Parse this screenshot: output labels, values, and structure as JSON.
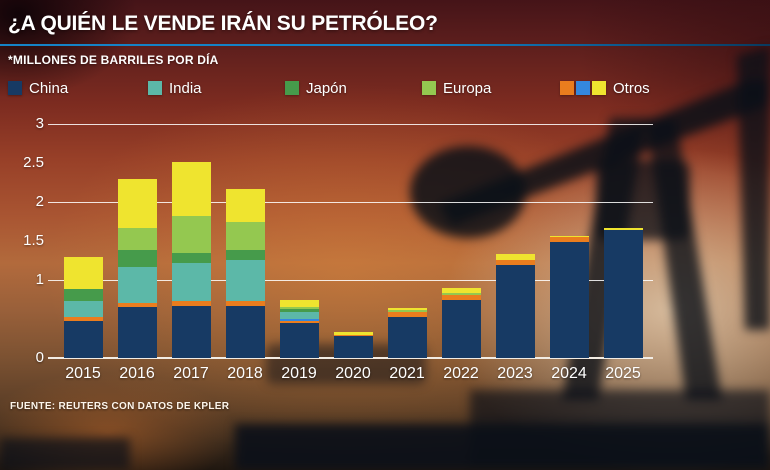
{
  "title": "¿A QUIÉN LE VENDE IRÁN SU PETRÓLEO?",
  "subtitle": "*MILLONES DE BARRILES POR DÍA",
  "source": "FUENTE: REUTERS CON DATOS DE KPLER",
  "colors": {
    "china": "#173a64",
    "india": "#5cb8a8",
    "japon": "#469b4b",
    "europa": "#94c850",
    "otros_orange": "#ea7d1e",
    "otros_blue": "#3487de",
    "otros_yellow": "#efe42f",
    "accent_line": "#1583c7",
    "grid": "rgba(255,255,255,0.85)",
    "baseline": "#f2ece4",
    "text": "#ffffff"
  },
  "legend": [
    {
      "id": "china",
      "label": "China",
      "swatches": [
        "china"
      ]
    },
    {
      "id": "india",
      "label": "India",
      "swatches": [
        "india"
      ]
    },
    {
      "id": "japon",
      "label": "Japón",
      "swatches": [
        "japon"
      ]
    },
    {
      "id": "europa",
      "label": "Europa",
      "swatches": [
        "europa"
      ]
    },
    {
      "id": "otros",
      "label": "Otros",
      "swatches": [
        "otros_orange",
        "otros_blue",
        "otros_yellow"
      ]
    }
  ],
  "chart_data": {
    "type": "bar",
    "stacked": true,
    "title": "¿A quién le vende Irán su petróleo?",
    "ylabel": "Millones de barriles por día",
    "ylim": [
      0,
      3
    ],
    "grid": "horizontal white lines at 0, 1, 2, 3",
    "legend_position": "top",
    "stack_order_bottom_to_top": [
      "China",
      "Otros (naranja)",
      "Otros (azul)",
      "India",
      "Japón",
      "Europa",
      "Otros (amarillo)"
    ],
    "yticks": [
      {
        "value": 3,
        "label": "3",
        "gridline": true
      },
      {
        "value": 2.5,
        "label": "2.5",
        "gridline": false
      },
      {
        "value": 2,
        "label": "2",
        "gridline": true
      },
      {
        "value": 1.5,
        "label": "1.5",
        "gridline": false
      },
      {
        "value": 1,
        "label": "1",
        "gridline": true
      },
      {
        "value": 0,
        "label": "0",
        "gridline": true
      }
    ],
    "categories": [
      "2015",
      "2016",
      "2017",
      "2018",
      "2019",
      "2020",
      "2021",
      "2022",
      "2023",
      "2024",
      "2025"
    ],
    "series": [
      {
        "name": "China",
        "color_key": "china",
        "values": [
          0.48,
          0.65,
          0.67,
          0.67,
          0.45,
          0.28,
          0.52,
          0.74,
          1.19,
          1.49,
          1.64
        ]
      },
      {
        "name": "Otros (naranja)",
        "color_key": "otros_orange",
        "values": [
          0.05,
          0.06,
          0.06,
          0.06,
          0.02,
          0.02,
          0.07,
          0.07,
          0.07,
          0.06,
          0
        ]
      },
      {
        "name": "Otros (azul)",
        "color_key": "otros_blue",
        "values": [
          0,
          0,
          0,
          0,
          0.03,
          0,
          0,
          0,
          0,
          0,
          0
        ]
      },
      {
        "name": "India",
        "color_key": "india",
        "values": [
          0.2,
          0.46,
          0.49,
          0.53,
          0.09,
          0,
          0,
          0,
          0,
          0,
          0
        ]
      },
      {
        "name": "Japón",
        "color_key": "japon",
        "values": [
          0.15,
          0.21,
          0.13,
          0.12,
          0.04,
          0,
          0,
          0,
          0,
          0,
          0
        ]
      },
      {
        "name": "Europa",
        "color_key": "europa",
        "values": [
          0,
          0.29,
          0.47,
          0.36,
          0.03,
          0,
          0.02,
          0.03,
          0,
          0,
          0
        ]
      },
      {
        "name": "Otros (amarillo)",
        "color_key": "otros_yellow",
        "values": [
          0.41,
          0.62,
          0.69,
          0.43,
          0.09,
          0.03,
          0.03,
          0.06,
          0.07,
          0.02,
          0.03
        ]
      }
    ],
    "totals": [
      1.29,
      2.29,
      2.51,
      2.17,
      0.75,
      0.33,
      0.64,
      0.9,
      1.33,
      1.57,
      1.67
    ]
  }
}
